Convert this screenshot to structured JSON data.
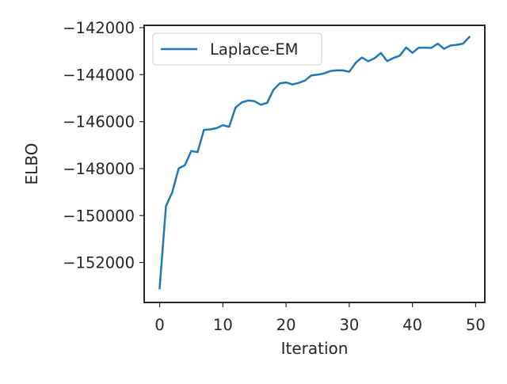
{
  "chart_data": {
    "type": "line",
    "title": "",
    "xlabel": "Iteration",
    "ylabel": "ELBO",
    "xlim": [
      -2.45,
      51.45
    ],
    "ylim": [
      -153700,
      -141900
    ],
    "x_ticks": [
      0,
      10,
      20,
      30,
      40,
      50
    ],
    "x_tick_labels": [
      "0",
      "10",
      "20",
      "30",
      "40",
      "50"
    ],
    "y_ticks": [
      -152000,
      -150000,
      -148000,
      -146000,
      -144000,
      -142000
    ],
    "y_tick_labels": [
      "−152000",
      "−150000",
      "−148000",
      "−146000",
      "−144000",
      "−142000"
    ],
    "grid": false,
    "legend_position": "upper-left",
    "series": [
      {
        "name": "Laplace-EM",
        "color": "#1f77b4",
        "x": [
          0,
          1,
          2,
          3,
          4,
          5,
          6,
          7,
          8,
          9,
          10,
          11,
          12,
          13,
          14,
          15,
          16,
          17,
          18,
          19,
          20,
          21,
          22,
          23,
          24,
          25,
          26,
          27,
          28,
          29,
          30,
          31,
          32,
          33,
          34,
          35,
          36,
          37,
          38,
          39,
          40,
          41,
          42,
          43,
          44,
          45,
          46,
          47,
          48,
          49
        ],
        "y": [
          -153100,
          -149600,
          -149000,
          -148000,
          -147850,
          -147250,
          -147300,
          -146350,
          -146330,
          -146280,
          -146150,
          -146220,
          -145400,
          -145180,
          -145100,
          -145130,
          -145280,
          -145200,
          -144650,
          -144370,
          -144330,
          -144420,
          -144350,
          -144250,
          -144030,
          -144000,
          -143950,
          -143850,
          -143820,
          -143820,
          -143880,
          -143500,
          -143270,
          -143430,
          -143300,
          -143080,
          -143420,
          -143290,
          -143190,
          -142840,
          -143070,
          -142850,
          -142850,
          -142860,
          -142680,
          -142900,
          -142760,
          -142730,
          -142680,
          -142400
        ]
      }
    ]
  }
}
